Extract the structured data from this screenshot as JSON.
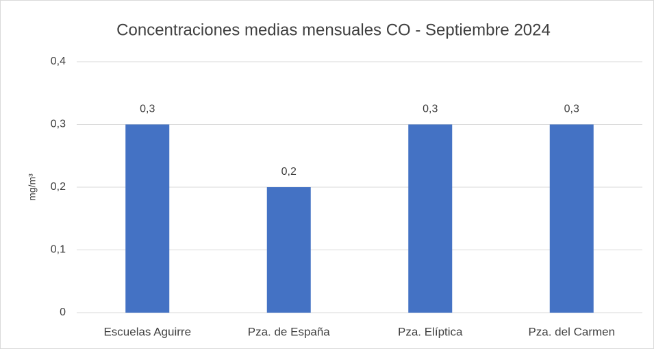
{
  "chart_data": {
    "type": "bar",
    "title": "Concentraciones medias mensuales CO - Septiembre 2024",
    "y_label": "mg/m³",
    "categories": [
      "Escuelas Aguirre",
      "Pza. de España",
      "Pza. Elíptica",
      "Pza. del Carmen"
    ],
    "values": [
      0.3,
      0.2,
      0.3,
      0.3
    ],
    "value_labels": [
      "0,3",
      "0,2",
      "0,3",
      "0,3"
    ],
    "color": "#4472c4",
    "ylim": [
      0,
      0.4
    ],
    "yticks": [
      0,
      {
        "value": 0.1,
        "label": "0,1"
      },
      {
        "value": 0.2,
        "label": "0,2"
      },
      {
        "value": 0.3,
        "label": "0,3"
      },
      {
        "value": 0.4,
        "label": "0,4"
      }
    ],
    "grid": true
  }
}
